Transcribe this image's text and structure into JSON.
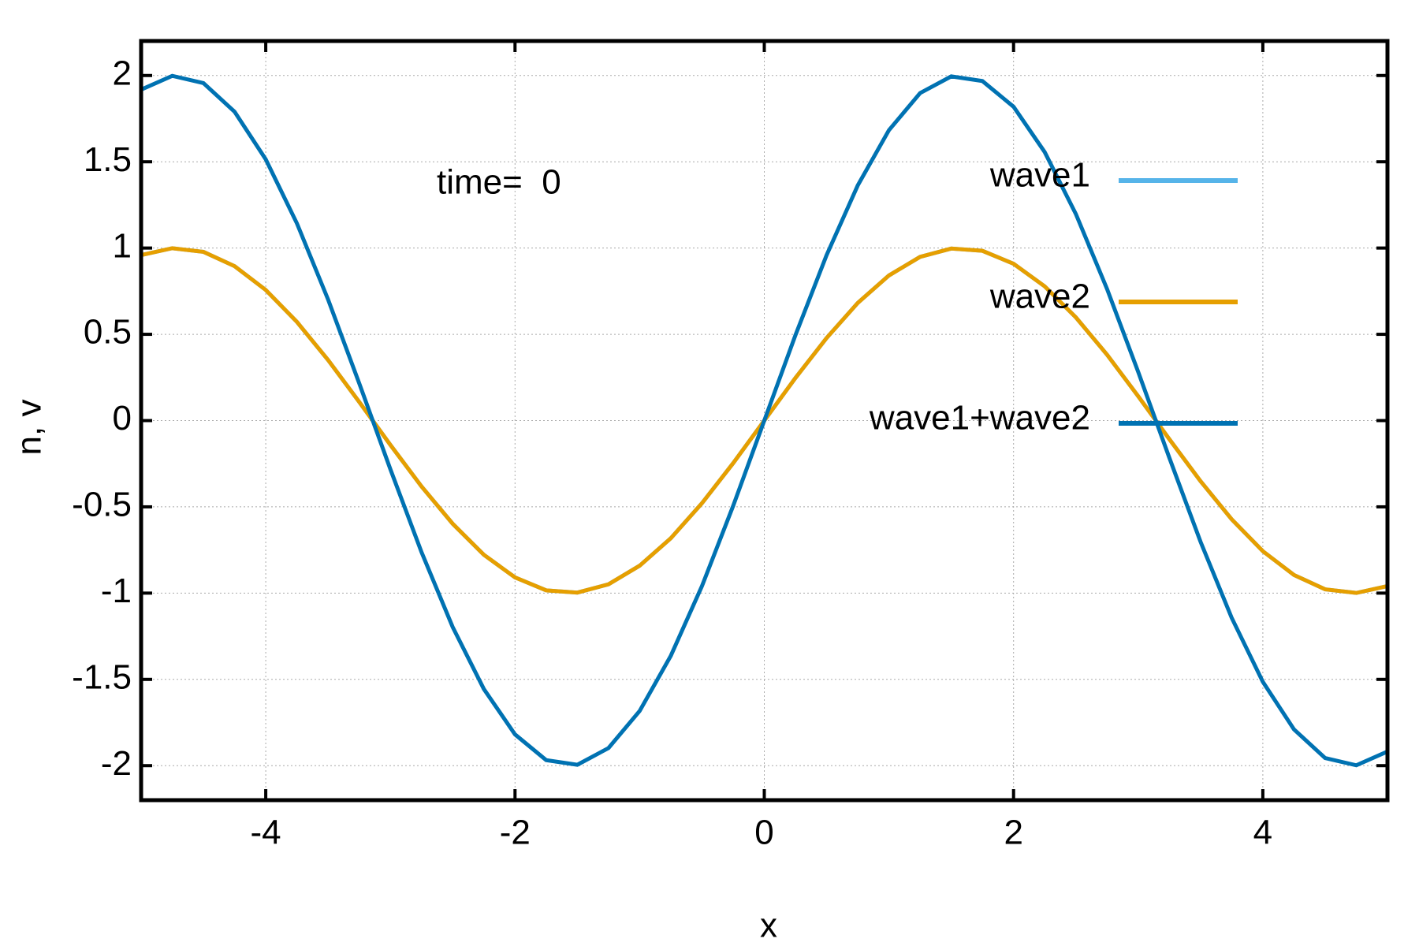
{
  "chart_data": {
    "type": "line",
    "xlabel": "x",
    "ylabel": "n, v",
    "annotation": "time=  0",
    "x": [
      -5,
      -4.75,
      -4.5,
      -4.25,
      -4,
      -3.75,
      -3.5,
      -3.25,
      -3,
      -2.75,
      -2.5,
      -2.25,
      -2,
      -1.75,
      -1.5,
      -1.25,
      -1,
      -0.75,
      -0.5,
      -0.25,
      0,
      0.25,
      0.5,
      0.75,
      1,
      1.25,
      1.5,
      1.75,
      2,
      2.25,
      2.5,
      2.75,
      3,
      3.25,
      3.5,
      3.75,
      4,
      4.25,
      4.5,
      4.75,
      5
    ],
    "series": [
      {
        "name": "wave1",
        "color": "#56b4e9",
        "values": [
          0.959,
          0.999,
          0.978,
          0.895,
          0.757,
          0.572,
          0.351,
          0.108,
          -0.141,
          -0.382,
          -0.598,
          -0.778,
          -0.909,
          -0.984,
          -0.997,
          -0.949,
          -0.841,
          -0.682,
          -0.479,
          -0.247,
          0,
          0.247,
          0.479,
          0.682,
          0.841,
          0.949,
          0.997,
          0.984,
          0.909,
          0.778,
          0.598,
          0.382,
          0.141,
          -0.108,
          -0.351,
          -0.572,
          -0.757,
          -0.895,
          -0.978,
          -0.999,
          -0.959
        ]
      },
      {
        "name": "wave2",
        "color": "#e69f00",
        "values": [
          0.959,
          0.999,
          0.978,
          0.895,
          0.757,
          0.572,
          0.351,
          0.108,
          -0.141,
          -0.382,
          -0.598,
          -0.778,
          -0.909,
          -0.984,
          -0.997,
          -0.949,
          -0.841,
          -0.682,
          -0.479,
          -0.247,
          0,
          0.247,
          0.479,
          0.682,
          0.841,
          0.949,
          0.997,
          0.984,
          0.909,
          0.778,
          0.598,
          0.382,
          0.141,
          -0.108,
          -0.351,
          -0.572,
          -0.757,
          -0.895,
          -0.978,
          -0.999,
          -0.959
        ]
      },
      {
        "name": "wave1+wave2",
        "color": "#0072b2",
        "values": [
          1.918,
          1.998,
          1.956,
          1.79,
          1.514,
          1.143,
          0.702,
          0.216,
          -0.282,
          -0.763,
          -1.197,
          -1.556,
          -1.819,
          -1.968,
          -1.995,
          -1.898,
          -1.683,
          -1.363,
          -0.959,
          -0.495,
          0,
          0.495,
          0.959,
          1.363,
          1.683,
          1.898,
          1.995,
          1.968,
          1.819,
          1.556,
          1.197,
          0.763,
          0.282,
          -0.216,
          -0.702,
          -1.143,
          -1.514,
          -1.79,
          -1.956,
          -1.998,
          -1.918
        ]
      }
    ],
    "xlim": [
      -5,
      5
    ],
    "xticks": [
      -4,
      -2,
      0,
      2,
      4
    ],
    "ylim": [
      -2.2,
      2.2
    ],
    "yticks": [
      -2,
      -1.5,
      -1,
      -0.5,
      0,
      0.5,
      1,
      1.5,
      2
    ],
    "grid": true,
    "legend": "top-right"
  }
}
